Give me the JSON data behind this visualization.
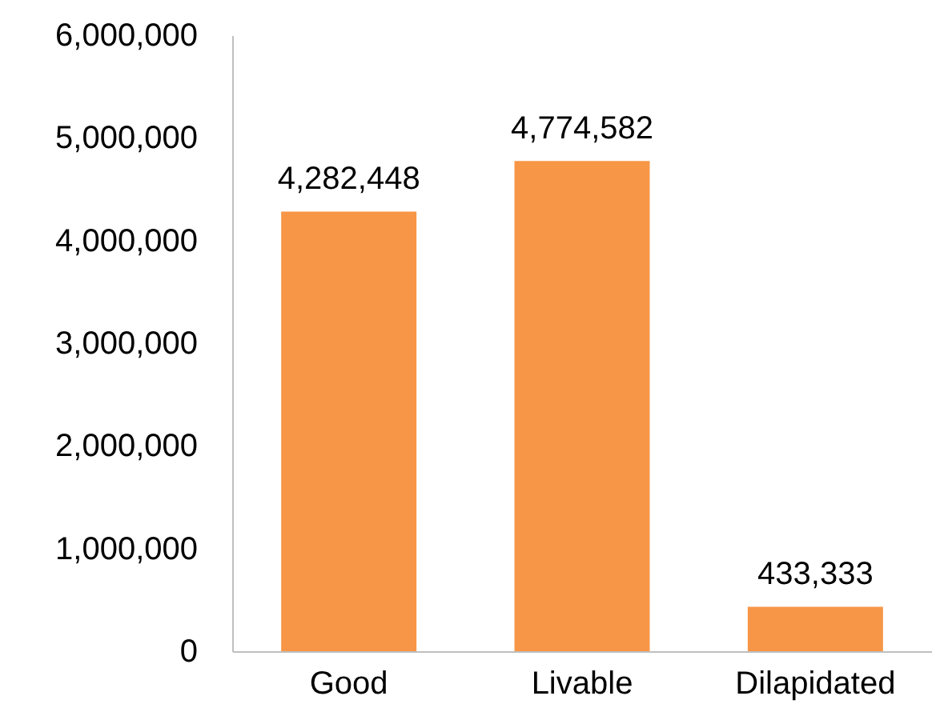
{
  "chart_data": {
    "type": "bar",
    "categories": [
      "Good",
      "Livable",
      "Dilapidated"
    ],
    "values": [
      4282448,
      4774582,
      433333
    ],
    "value_labels": [
      "4,282,448",
      "4,774,582",
      "433,333"
    ],
    "color": "#f79646",
    "ylim": [
      0,
      6000000
    ],
    "yticks": [
      0,
      {
        "value": 1000000,
        "label": "1,000,000"
      },
      {
        "value": 2000000,
        "label": "2,000,000"
      },
      {
        "value": 3000000,
        "label": "3,000,000"
      },
      {
        "value": 4000000,
        "label": "4,000,000"
      },
      {
        "value": 5000000,
        "label": "5,000,000"
      },
      {
        "value": 6000000,
        "label": "6,000,000"
      }
    ],
    "grid": false
  }
}
